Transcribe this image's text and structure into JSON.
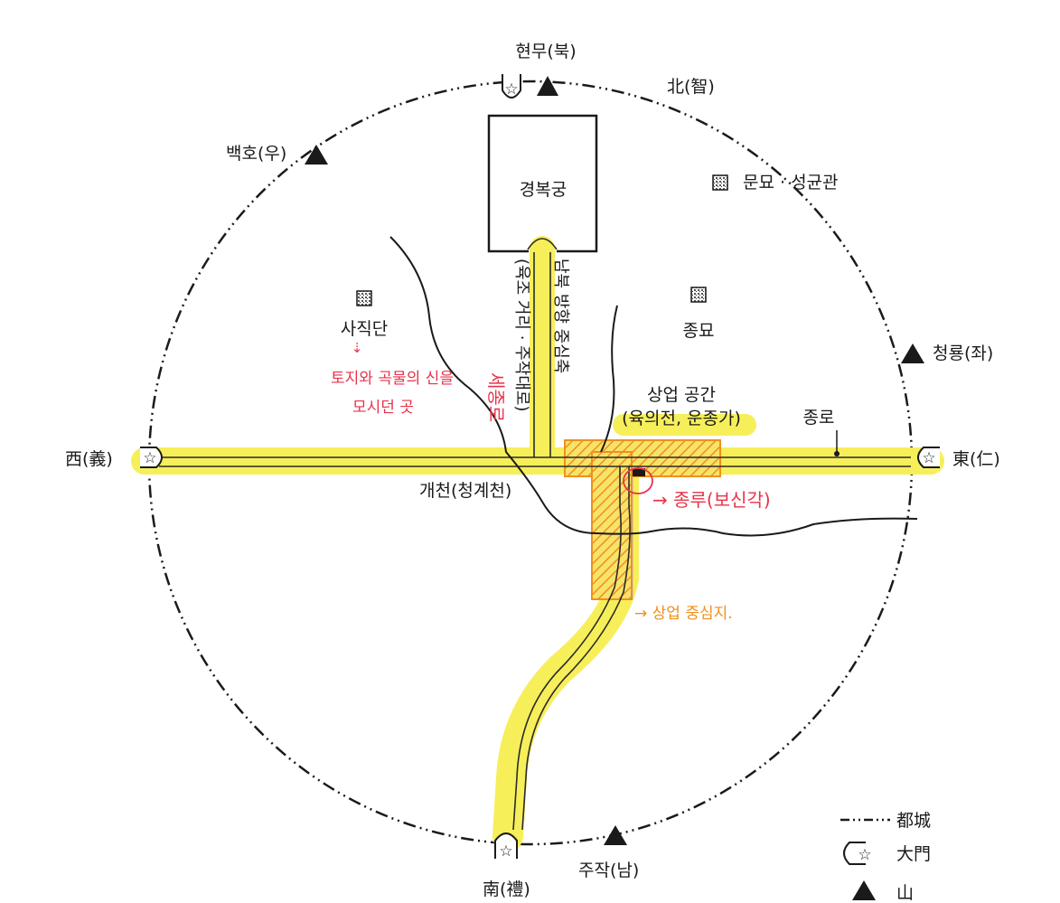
{
  "map": {
    "directions": {
      "north": "현무(북)",
      "north_virtue": "北(智)",
      "west_mountain": "백호(우)",
      "east_mountain": "청룡(좌)",
      "south_mountain": "주작(남)",
      "west_gate": "西(義)",
      "east_gate": "東(仁)",
      "south_gate": "南(禮)"
    },
    "places": {
      "palace": "경복궁",
      "munmyo": "문묘 · 성균관",
      "sajikdan": "사직단",
      "jongmyo": "종묘",
      "commerce_title": "상업 공간",
      "commerce_sub": "(육의전, 운종가)",
      "jongno": "종로",
      "gaecheon": "개천(청계천)"
    },
    "axis_text": {
      "col_right": "남북 방향 중심축",
      "col_left": "(육조 거리 · 주작대로)"
    },
    "annotations": {
      "sajik_note_line1": "토지와 곡물의 신을",
      "sajik_note_line2": "모시던 곳",
      "sejong_road": "세종로",
      "jonggak": "→ 종루(보신각)",
      "commerce_center": "→ 상업 중심지."
    },
    "legend": {
      "wall": "都城",
      "gate": "大門",
      "mountain": "山"
    },
    "colors": {
      "highlight": "#f6ef5a",
      "road": "#2a2a2a",
      "red_ink": "#e8334a",
      "orange_ink": "#f0901a"
    }
  }
}
